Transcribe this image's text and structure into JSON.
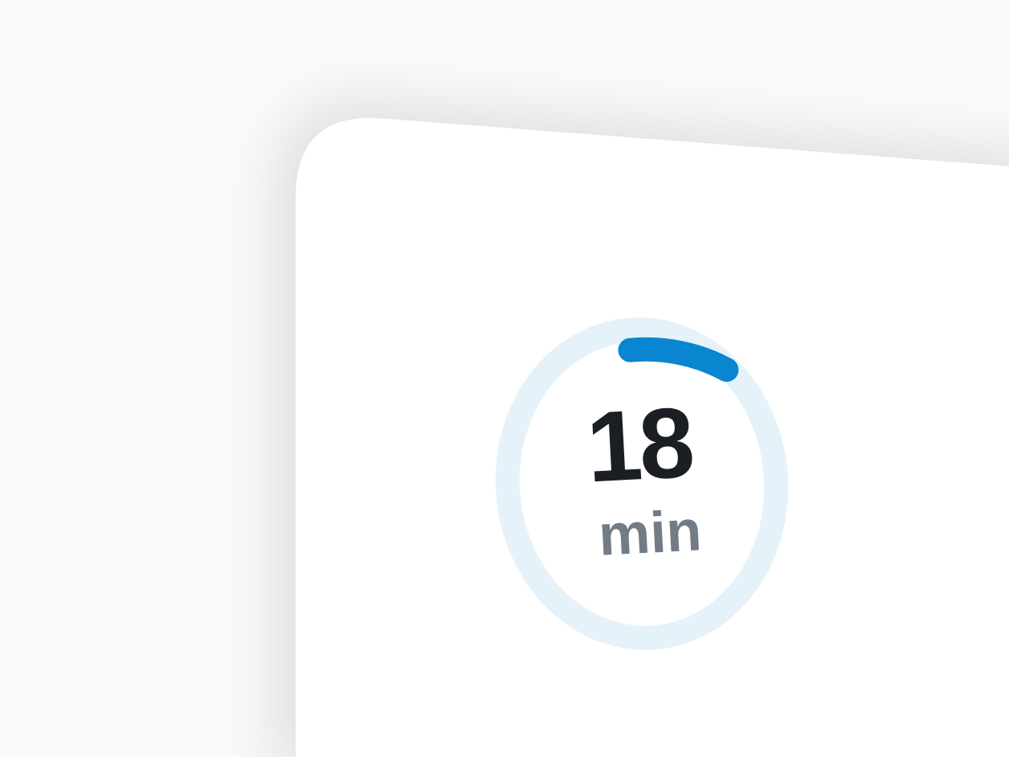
{
  "timer": {
    "value": "18",
    "unit": "min",
    "progress_fraction": 0.11,
    "track_color": "#e6f2f9",
    "progress_color": "#0a86d0",
    "value_color": "#1b1f24",
    "unit_color": "#737b85"
  },
  "card": {
    "background": "#ffffff"
  }
}
